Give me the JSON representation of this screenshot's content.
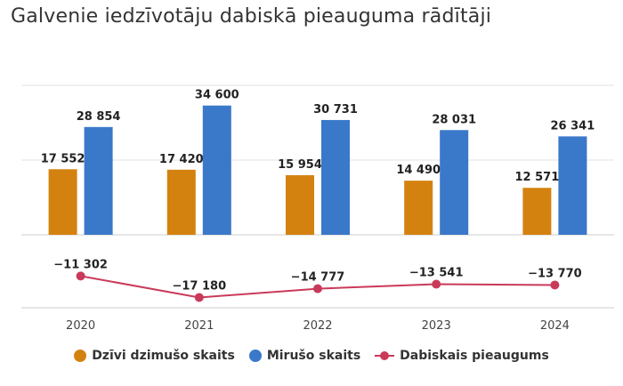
{
  "chart_data": {
    "type": "bar",
    "title": "Galvenie iedzīvotāju dabiskā pieauguma rādītāji",
    "categories": [
      "2020",
      "2021",
      "2022",
      "2023",
      "2024"
    ],
    "series": [
      {
        "name": "Dzīvi dzimušo skaits",
        "type": "bar",
        "color": "#d4820f",
        "values": [
          17552,
          17420,
          15954,
          14490,
          12571
        ],
        "labels": [
          "17 552",
          "17 420",
          "15 954",
          "14 490",
          "12 571"
        ]
      },
      {
        "name": "Mirušo skaits",
        "type": "bar",
        "color": "#3a78c9",
        "values": [
          28854,
          34600,
          30731,
          28031,
          26341
        ],
        "labels": [
          "28 854",
          "34 600",
          "30 731",
          "28 031",
          "26 341"
        ]
      },
      {
        "name": "Dabiskais pieaugums",
        "type": "line",
        "color": "#c93a5a",
        "values": [
          -11302,
          -17180,
          -14777,
          -13541,
          -13770
        ],
        "labels": [
          "−11 302",
          "−17 180",
          "−14 777",
          "−13 541",
          "−13 770"
        ]
      }
    ],
    "ylim_bars": [
      0,
      40000
    ],
    "ylim_line": [
      -20000,
      0
    ],
    "grid": true,
    "legend_position": "bottom"
  }
}
